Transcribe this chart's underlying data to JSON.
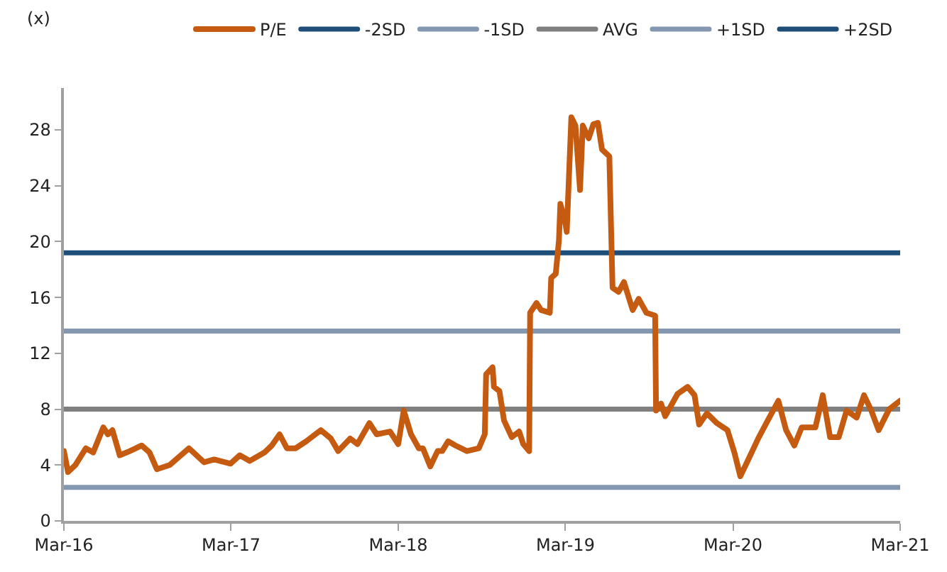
{
  "chart_data": {
    "type": "line",
    "ylabel": "(x)",
    "xlim": [
      "2016-03-01",
      "2021-03-01"
    ],
    "xticks": [
      {
        "value": "2016-03-01",
        "label": "Mar-16"
      },
      {
        "value": "2017-03-01",
        "label": "Mar-17"
      },
      {
        "value": "2018-03-01",
        "label": "Mar-18"
      },
      {
        "value": "2019-03-01",
        "label": "Mar-19"
      },
      {
        "value": "2020-03-01",
        "label": "Mar-20"
      },
      {
        "value": "2021-03-01",
        "label": "Mar-21"
      }
    ],
    "ylim": [
      0,
      31
    ],
    "yticks": [
      0,
      4,
      8,
      12,
      16,
      20,
      24,
      28
    ],
    "legend": "top",
    "line_style": "solid",
    "marker": "none",
    "series": [
      {
        "name": "P/E",
        "color": "#c55a11",
        "x": [
          "2016-03-01",
          "2016-03-10",
          "2016-03-26",
          "2016-04-18",
          "2016-05-04",
          "2016-05-26",
          "2016-06-05",
          "2016-06-15",
          "2016-07-01",
          "2016-07-23",
          "2016-08-18",
          "2016-09-04",
          "2016-09-20",
          "2016-10-18",
          "2016-11-29",
          "2017-01-01",
          "2017-01-23",
          "2017-02-28",
          "2017-03-20",
          "2017-04-11",
          "2017-05-13",
          "2017-05-29",
          "2017-06-15",
          "2017-07-01",
          "2017-07-20",
          "2017-08-12",
          "2017-09-13",
          "2017-10-05",
          "2017-10-21",
          "2017-11-16",
          "2017-12-02",
          "2017-12-28",
          "2018-01-13",
          "2018-02-11",
          "2018-03-01",
          "2018-03-13",
          "2018-03-29",
          "2018-04-15",
          "2018-04-24",
          "2018-05-10",
          "2018-05-26",
          "2018-06-05",
          "2018-06-18",
          "2018-07-04",
          "2018-07-29",
          "2018-08-24",
          "2018-09-06",
          "2018-09-09",
          "2018-09-23",
          "2018-09-26",
          "2018-10-08",
          "2018-10-18",
          "2018-11-04",
          "2018-11-20",
          "2018-11-29",
          "2018-12-12",
          "2018-12-14",
          "2018-12-28",
          "2019-01-07",
          "2019-01-26",
          "2019-01-29",
          "2019-02-08",
          "2019-02-15",
          "2019-02-18",
          "2019-02-28",
          "2019-03-04",
          "2019-03-14",
          "2019-03-23",
          "2019-04-02",
          "2019-04-08",
          "2019-04-21",
          "2019-05-01",
          "2019-05-11",
          "2019-05-20",
          "2019-06-05",
          "2019-06-12",
          "2019-06-25",
          "2019-07-07",
          "2019-07-26",
          "2019-08-08",
          "2019-08-25",
          "2019-09-13",
          "2019-09-15",
          "2019-09-26",
          "2019-10-05",
          "2019-11-01",
          "2019-11-23",
          "2019-12-08",
          "2019-12-18",
          "2020-01-04",
          "2020-01-26",
          "2020-02-18",
          "2020-03-04",
          "2020-03-17",
          "2020-04-05",
          "2020-04-25",
          "2020-05-16",
          "2020-06-08",
          "2020-06-25",
          "2020-07-13",
          "2020-07-29",
          "2020-08-28",
          "2020-09-13",
          "2020-09-29",
          "2020-10-18",
          "2020-11-04",
          "2020-11-26",
          "2020-12-12",
          "2020-12-28",
          "2021-01-13",
          "2021-02-05",
          "2021-02-21",
          "2021-03-01"
        ],
        "values": [
          5.0,
          3.5,
          4.0,
          5.2,
          4.9,
          6.7,
          6.2,
          6.5,
          4.7,
          5.0,
          5.4,
          4.9,
          3.7,
          4.0,
          5.2,
          4.2,
          4.4,
          4.1,
          4.7,
          4.3,
          4.9,
          5.4,
          6.2,
          5.2,
          5.2,
          5.7,
          6.5,
          5.9,
          5.0,
          5.9,
          5.5,
          7.0,
          6.2,
          6.4,
          5.5,
          7.9,
          6.2,
          5.2,
          5.2,
          3.9,
          5.0,
          5.0,
          5.7,
          5.4,
          5.0,
          5.2,
          6.2,
          10.5,
          11.0,
          9.6,
          9.3,
          7.2,
          6.0,
          6.4,
          5.5,
          5.0,
          14.9,
          15.6,
          15.1,
          14.9,
          17.4,
          17.7,
          20.1,
          22.7,
          21.5,
          20.7,
          28.9,
          28.3,
          23.7,
          28.3,
          27.4,
          28.4,
          28.5,
          26.6,
          26.1,
          16.7,
          16.4,
          17.1,
          15.1,
          15.9,
          14.9,
          14.7,
          7.9,
          8.4,
          7.5,
          9.1,
          9.6,
          9.0,
          6.9,
          7.7,
          7.0,
          6.5,
          4.9,
          3.2,
          4.5,
          5.9,
          7.2,
          8.6,
          6.5,
          5.4,
          6.7,
          6.7,
          9.0,
          6.0,
          6.0,
          7.9,
          7.4,
          9.0,
          7.9,
          6.5,
          8.0,
          8.4,
          8.6
        ]
      },
      {
        "name": "-2SD",
        "color": "#1f4e79",
        "values": [
          null
        ]
      },
      {
        "name": "-1SD",
        "color": "#8497b0",
        "x": [
          "2016-03-01",
          "2021-03-01"
        ],
        "values": [
          2.4,
          2.4
        ]
      },
      {
        "name": "AVG",
        "color": "#7f7f7f",
        "x": [
          "2016-03-01",
          "2021-03-01"
        ],
        "values": [
          8.0,
          8.0
        ]
      },
      {
        "name": "+1SD",
        "color": "#8497b0",
        "x": [
          "2016-03-01",
          "2021-03-01"
        ],
        "values": [
          13.6,
          13.6
        ]
      },
      {
        "name": "+2SD",
        "color": "#1f4e79",
        "x": [
          "2016-03-01",
          "2021-03-01"
        ],
        "values": [
          19.2,
          19.2
        ]
      }
    ]
  }
}
